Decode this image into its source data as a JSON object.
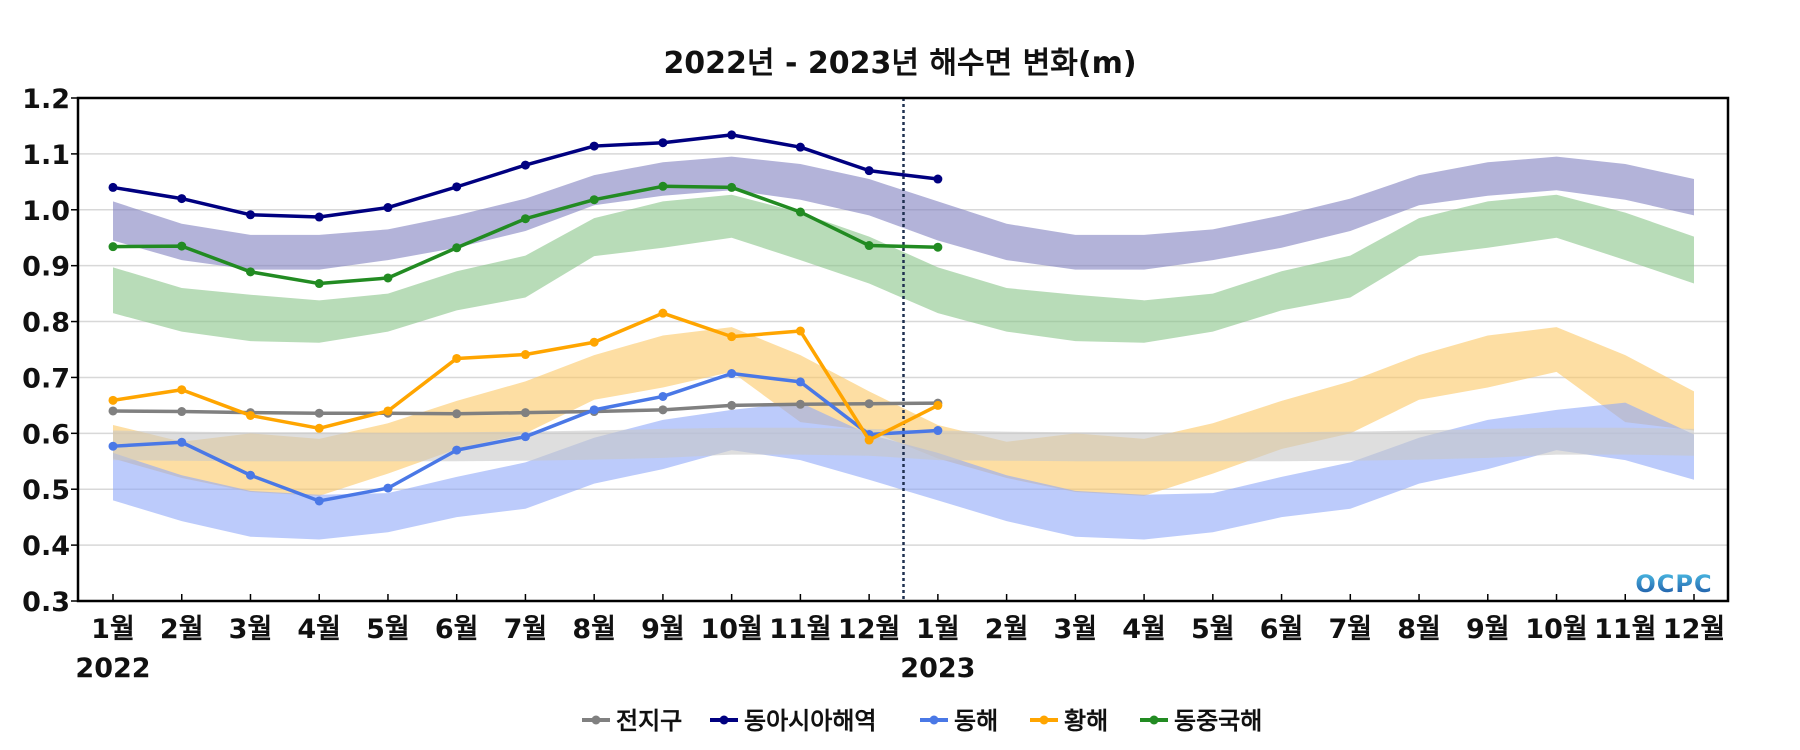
{
  "chart_data": {
    "type": "line",
    "title": "2022년 - 2023년 해수면 변화(m)",
    "xlabel": "",
    "ylabel": "",
    "ylim": [
      0.3,
      1.2
    ],
    "yticks": [
      "0.3",
      "0.4",
      "0.5",
      "0.6",
      "0.7",
      "0.8",
      "0.9",
      "1.0",
      "1.1",
      "1.2"
    ],
    "ytick_values": [
      0.3,
      0.4,
      0.5,
      0.6,
      0.7,
      0.8,
      0.9,
      1.0,
      1.1,
      1.2
    ],
    "grid": true,
    "legend_position": "bottom-center",
    "x_tick_labels": [
      "1월",
      "2월",
      "3월",
      "4월",
      "5월",
      "6월",
      "7월",
      "8월",
      "9월",
      "10월",
      "11월",
      "12월",
      "1월",
      "2월",
      "3월",
      "4월",
      "5월",
      "6월",
      "7월",
      "8월",
      "9월",
      "10월",
      "11월",
      "12월"
    ],
    "year_labels": [
      {
        "label": "2022",
        "index": 0
      },
      {
        "label": "2023",
        "index": 12
      }
    ],
    "divider_index": 11.5,
    "watermark": "OCPC",
    "series": [
      {
        "name": "전지구",
        "color": "#808080",
        "band_color": "#c8c8c8",
        "values": [
          0.64,
          0.639,
          0.637,
          0.636,
          0.636,
          0.635,
          0.637,
          0.639,
          0.642,
          0.65,
          0.652,
          0.653,
          0.654
        ],
        "band_upper": [
          0.605,
          0.603,
          0.602,
          0.602,
          0.601,
          0.602,
          0.603,
          0.605,
          0.608,
          0.61,
          0.61,
          0.608
        ],
        "band_lower": [
          0.552,
          0.551,
          0.55,
          0.55,
          0.55,
          0.55,
          0.551,
          0.553,
          0.556,
          0.562,
          0.562,
          0.56
        ]
      },
      {
        "name": "동아시아해역",
        "color": "#000080",
        "band_color": "#8080c0",
        "values": [
          1.04,
          1.02,
          0.991,
          0.987,
          1.004,
          1.041,
          1.08,
          1.114,
          1.12,
          1.134,
          1.112,
          1.07,
          1.055
        ],
        "band_upper": [
          1.015,
          0.975,
          0.955,
          0.955,
          0.965,
          0.99,
          1.02,
          1.062,
          1.085,
          1.095,
          1.082,
          1.055
        ],
        "band_lower": [
          0.945,
          0.91,
          0.893,
          0.893,
          0.91,
          0.932,
          0.962,
          1.008,
          1.025,
          1.035,
          1.018,
          0.99
        ]
      },
      {
        "name": "동해",
        "color": "#4a78e6",
        "band_color": "#90a8f8",
        "values": [
          0.577,
          0.584,
          0.525,
          0.479,
          0.502,
          0.57,
          0.594,
          0.642,
          0.666,
          0.707,
          0.692,
          0.598,
          0.605
        ],
        "band_upper": [
          0.565,
          0.525,
          0.497,
          0.49,
          0.493,
          0.522,
          0.548,
          0.592,
          0.624,
          0.642,
          0.655,
          0.598
        ],
        "band_lower": [
          0.48,
          0.443,
          0.415,
          0.41,
          0.423,
          0.45,
          0.465,
          0.51,
          0.536,
          0.57,
          0.552,
          0.517
        ]
      },
      {
        "name": "황해",
        "color": "#ffa500",
        "band_color": "#fcc865",
        "values": [
          0.659,
          0.678,
          0.632,
          0.609,
          0.64,
          0.734,
          0.741,
          0.763,
          0.815,
          0.773,
          0.783,
          0.588,
          0.65
        ],
        "band_upper": [
          0.615,
          0.585,
          0.6,
          0.59,
          0.618,
          0.658,
          0.693,
          0.74,
          0.775,
          0.79,
          0.74,
          0.675
        ],
        "band_lower": [
          0.555,
          0.52,
          0.495,
          0.488,
          0.528,
          0.572,
          0.6,
          0.66,
          0.682,
          0.71,
          0.62,
          0.605
        ]
      },
      {
        "name": "동중국해",
        "color": "#228b22",
        "band_color": "#88c488",
        "values": [
          0.934,
          0.935,
          0.889,
          0.868,
          0.878,
          0.932,
          0.984,
          1.018,
          1.042,
          1.04,
          0.996,
          0.936,
          0.933
        ],
        "band_upper": [
          0.897,
          0.86,
          0.848,
          0.838,
          0.85,
          0.89,
          0.918,
          0.985,
          1.015,
          1.027,
          0.995,
          0.952
        ],
        "band_lower": [
          0.815,
          0.782,
          0.765,
          0.762,
          0.782,
          0.82,
          0.843,
          0.917,
          0.932,
          0.95,
          0.91,
          0.868
        ]
      }
    ],
    "band_order": [
      "동아시아해역",
      "동중국해",
      "황해",
      "동해",
      "전지구"
    ]
  }
}
